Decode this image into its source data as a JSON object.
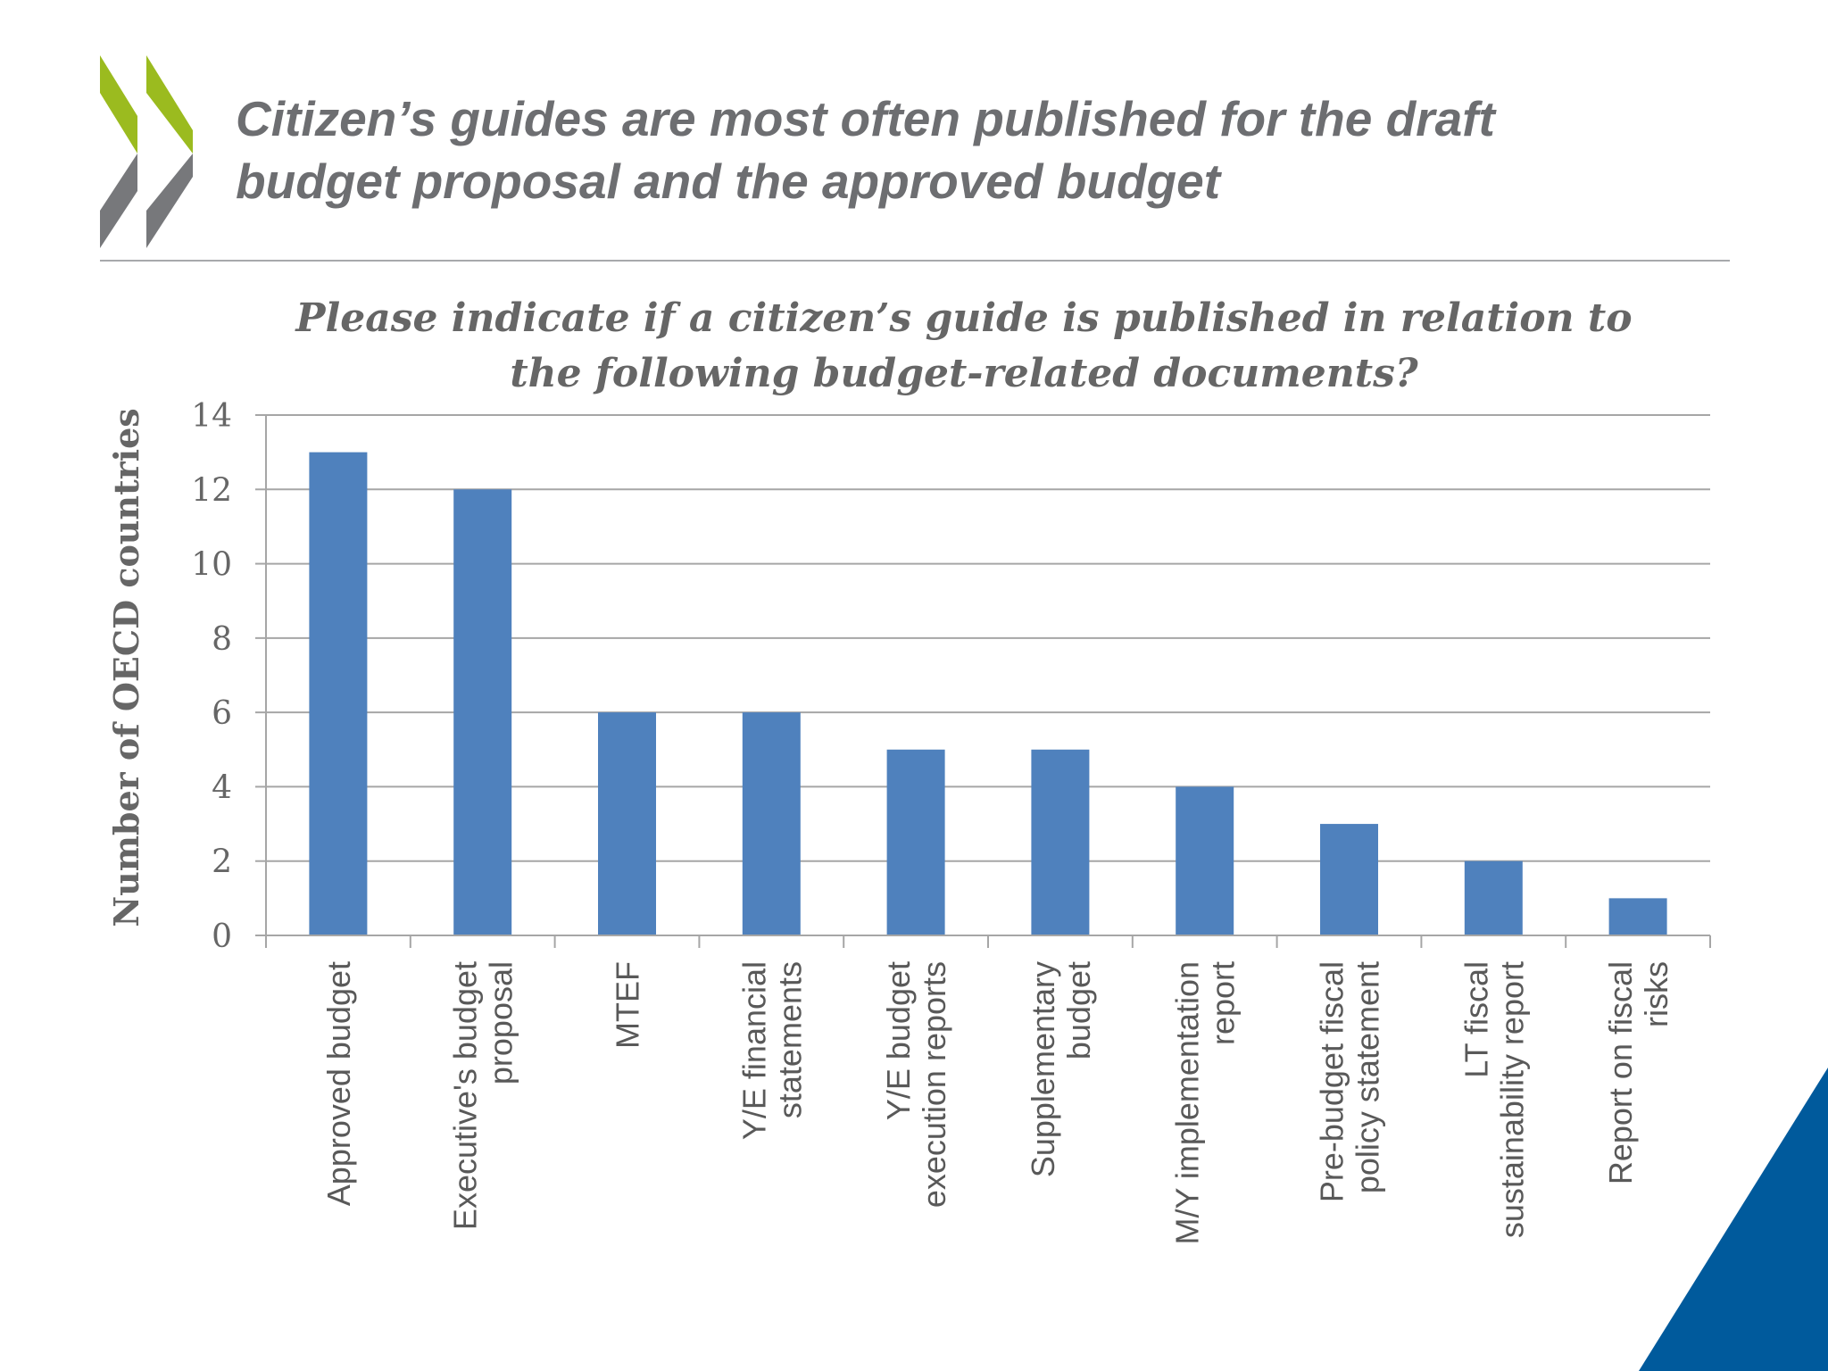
{
  "slide": {
    "title_line1": "Citizen’s guides are most often published for the draft",
    "title_line2": "budget proposal and the approved budget"
  },
  "colors": {
    "bar": "#4f81bd",
    "logo_green": "#9bbb1f",
    "logo_gray": "#77787b",
    "corner_blue": "#005a9c"
  },
  "icons": {
    "logo": "oecd-chevrons-logo",
    "corner": "blue-corner-triangle"
  },
  "chart_data": {
    "type": "bar",
    "title_line1": "Please indicate if a citizen’s guide is published in relation to",
    "title_line2": "the following budget-related documents?",
    "ylabel": "Number of OECD countries",
    "xlabel": "",
    "ylim": [
      0,
      14
    ],
    "yticks": [
      0,
      2,
      4,
      6,
      8,
      10,
      12,
      14
    ],
    "grid": true,
    "legend": "none",
    "categories": [
      [
        "Approved budget"
      ],
      [
        "Executive's budget",
        "proposal"
      ],
      [
        "MTEF"
      ],
      [
        "Y/E financial",
        "statements"
      ],
      [
        "Y/E budget",
        "execution reports"
      ],
      [
        "Supplementary",
        "budget"
      ],
      [
        "M/Y implementation",
        "report"
      ],
      [
        "Pre-budget fiscal",
        "policy statement"
      ],
      [
        "LT fiscal",
        "sustainability report"
      ],
      [
        "Report on fiscal",
        "risks"
      ]
    ],
    "values": [
      13,
      12,
      6,
      6,
      5,
      5,
      4,
      3,
      2,
      1
    ]
  }
}
